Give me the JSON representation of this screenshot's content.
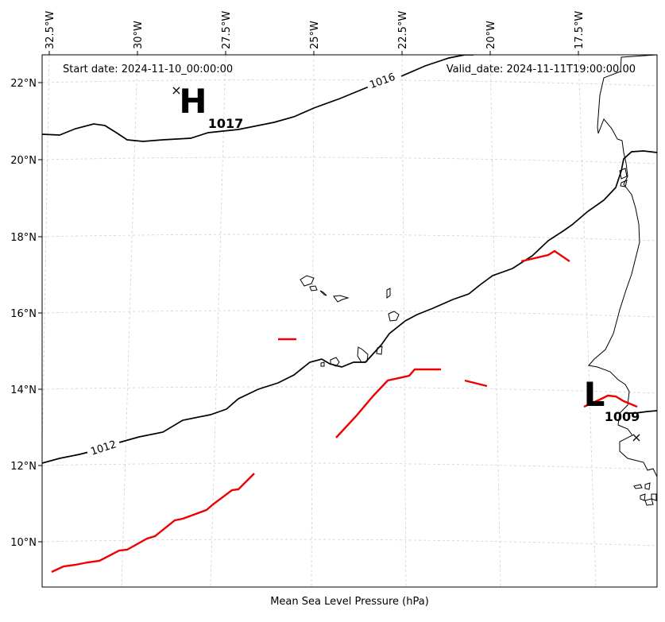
{
  "header": {
    "start_date": "Start date: 2024-11-10_00:00:00",
    "valid_date": "Valid_date: 2024-11-11T19:00:00.00"
  },
  "xlabel": "Mean Sea Level Pressure (hPa)",
  "lon_ticks": [
    "32.5°W",
    "30°W",
    "27.5°W",
    "25°W",
    "22.5°W",
    "20°W",
    "17.5°W"
  ],
  "lat_ticks": [
    "22°N",
    "20°N",
    "18°N",
    "16°N",
    "14°N",
    "12°N",
    "10°N"
  ],
  "isobar_labels": [
    "1016",
    "1012"
  ],
  "pressure_centers": [
    {
      "type": "H",
      "value": "1017"
    },
    {
      "type": "L",
      "value": "1009"
    }
  ],
  "colors": {
    "isobar": "#000000",
    "front": "#ee0000",
    "grid": "#cfcfcf"
  },
  "map_extent": {
    "lon_min": -33.0,
    "lon_max": -15.3,
    "lat_min": 8.9,
    "lat_max": 22.8
  }
}
